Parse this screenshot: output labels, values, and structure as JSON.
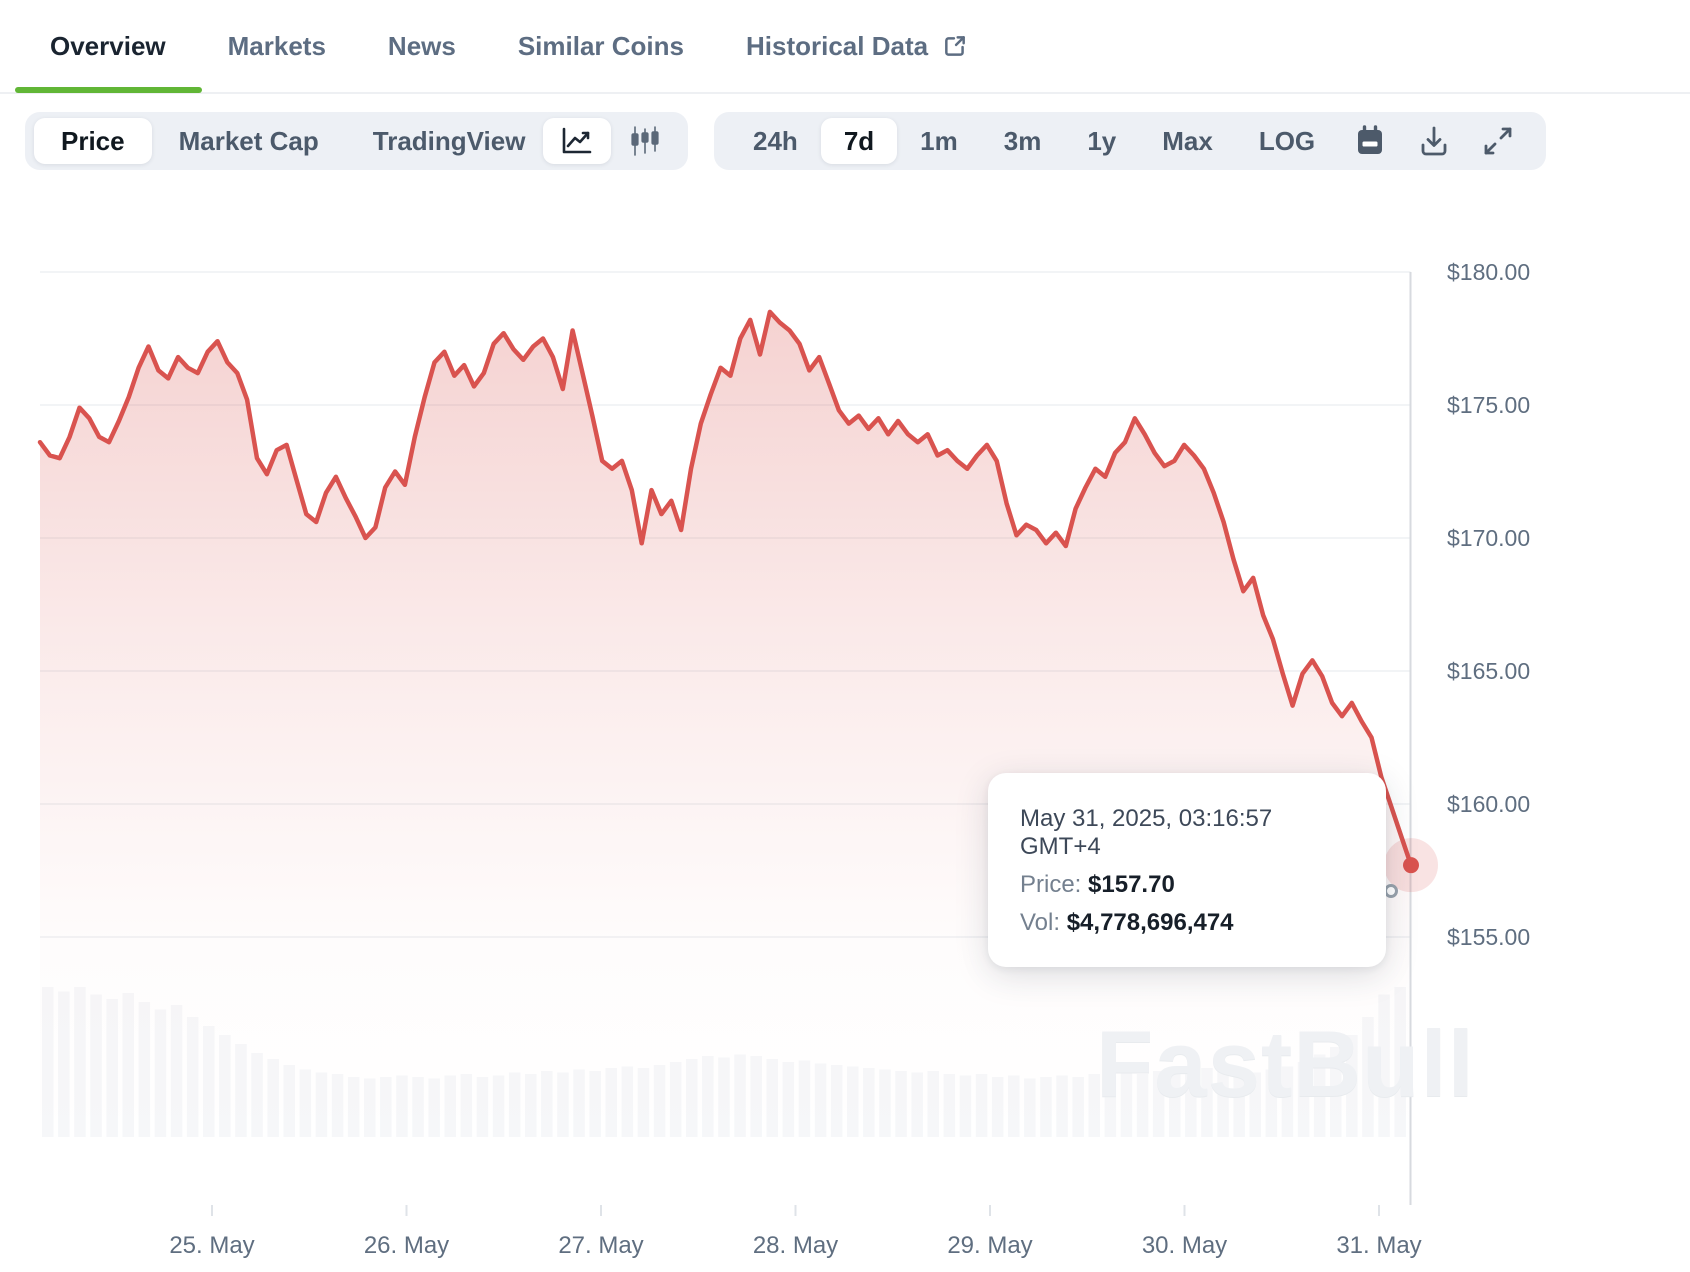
{
  "tabs": {
    "items": [
      {
        "label": "Overview",
        "active": true
      },
      {
        "label": "Markets",
        "active": false
      },
      {
        "label": "News",
        "active": false
      },
      {
        "label": "Similar Coins",
        "active": false
      },
      {
        "label": "Historical Data",
        "active": false,
        "icon": "external-link-icon"
      }
    ],
    "active_underline_color": "#61b636"
  },
  "toolbar": {
    "modes": [
      "Price",
      "Market Cap",
      "TradingView"
    ],
    "active_mode": "Price",
    "chart_type_icons": [
      "line-chart-icon",
      "candlestick-chart-icon"
    ],
    "active_chart_type": "line-chart-icon",
    "ranges": [
      "24h",
      "7d",
      "1m",
      "3m",
      "1y",
      "Max",
      "LOG"
    ],
    "active_range": "7d",
    "action_icons": [
      "calendar-icon",
      "download-icon",
      "expand-icon"
    ]
  },
  "tooltip": {
    "datetime": "May 31, 2025, 03:16:57 GMT+4",
    "price_label": "Price:",
    "price_value": "$157.70",
    "vol_label": "Vol:",
    "vol_value": "$4,778,696,474"
  },
  "watermark": {
    "text": "FastBull"
  },
  "chart_data": {
    "type": "area",
    "title": "7-day price chart",
    "x_labels": [
      "25. May",
      "26. May",
      "27. May",
      "28. May",
      "29. May",
      "30. May",
      "31. May"
    ],
    "y_ticks": [
      "$180.00",
      "$175.00",
      "$170.00",
      "$165.00",
      "$160.00",
      "$155.00"
    ],
    "y_tick_values": [
      180,
      175,
      170,
      165,
      160,
      155
    ],
    "ylim": [
      155,
      180
    ],
    "grid": true,
    "line_color": "#d9534f",
    "fill_color_top": "rgba(217,83,79,0.28)",
    "axis_color": "#d7dadf",
    "label_color": "#5f6e80",
    "prices": [
      173.6,
      173.1,
      173.0,
      173.8,
      174.9,
      174.5,
      173.8,
      173.6,
      174.4,
      175.3,
      176.4,
      177.2,
      176.3,
      176.0,
      176.8,
      176.4,
      176.2,
      177.0,
      177.4,
      176.6,
      176.2,
      175.2,
      173.0,
      172.4,
      173.3,
      173.5,
      172.2,
      170.9,
      170.6,
      171.7,
      172.3,
      171.5,
      170.8,
      170.0,
      170.4,
      171.9,
      172.5,
      172.0,
      173.8,
      175.3,
      176.6,
      177.0,
      176.1,
      176.5,
      175.7,
      176.2,
      177.3,
      177.7,
      177.1,
      176.7,
      177.2,
      177.5,
      176.8,
      175.6,
      177.8,
      176.2,
      174.6,
      172.9,
      172.6,
      172.9,
      171.8,
      169.8,
      171.8,
      170.9,
      171.4,
      170.3,
      172.6,
      174.3,
      175.4,
      176.4,
      176.1,
      177.5,
      178.2,
      176.9,
      178.5,
      178.1,
      177.8,
      177.3,
      176.3,
      176.8,
      175.8,
      174.8,
      174.3,
      174.6,
      174.1,
      174.5,
      173.9,
      174.4,
      173.9,
      173.6,
      173.9,
      173.1,
      173.3,
      172.9,
      172.6,
      173.1,
      173.5,
      172.9,
      171.3,
      170.1,
      170.5,
      170.3,
      169.8,
      170.2,
      169.7,
      171.1,
      171.9,
      172.6,
      172.3,
      173.2,
      173.6,
      174.5,
      173.9,
      173.2,
      172.7,
      172.9,
      173.5,
      173.1,
      172.6,
      171.7,
      170.6,
      169.2,
      168.0,
      168.5,
      167.1,
      166.2,
      164.9,
      163.7,
      164.9,
      165.4,
      164.8,
      163.8,
      163.3,
      163.8,
      163.1,
      162.5,
      161.0,
      159.9,
      158.8,
      157.7
    ],
    "volume_rel": [
      1.0,
      0.97,
      1.0,
      0.95,
      0.92,
      0.96,
      0.9,
      0.85,
      0.88,
      0.8,
      0.74,
      0.68,
      0.62,
      0.56,
      0.52,
      0.48,
      0.45,
      0.43,
      0.42,
      0.4,
      0.39,
      0.4,
      0.41,
      0.4,
      0.39,
      0.41,
      0.42,
      0.4,
      0.41,
      0.43,
      0.42,
      0.44,
      0.43,
      0.45,
      0.44,
      0.46,
      0.47,
      0.46,
      0.48,
      0.5,
      0.52,
      0.54,
      0.53,
      0.55,
      0.54,
      0.52,
      0.5,
      0.51,
      0.49,
      0.48,
      0.47,
      0.46,
      0.45,
      0.44,
      0.43,
      0.44,
      0.42,
      0.41,
      0.42,
      0.4,
      0.41,
      0.39,
      0.4,
      0.41,
      0.4,
      0.42,
      0.41,
      0.43,
      0.42,
      0.44,
      0.43,
      0.45,
      0.46,
      0.44,
      0.42,
      0.43,
      0.45,
      0.47,
      0.5,
      0.55,
      0.6,
      0.68,
      0.8,
      0.95,
      1.0
    ],
    "last_point": {
      "datetime": "May 31, 2025, 03:16:57 GMT+4",
      "price": 157.7,
      "volume": 4778696474
    }
  }
}
